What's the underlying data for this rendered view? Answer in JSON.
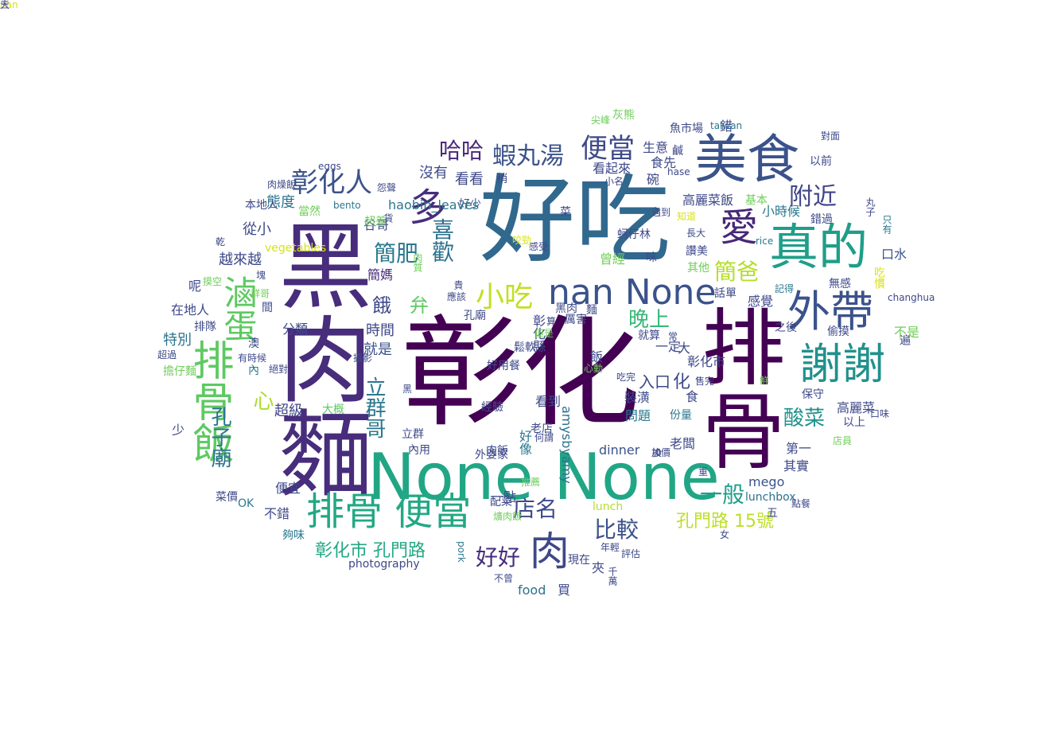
{
  "palette": {
    "dark_purple": "#440154",
    "indigo": "#3b528b",
    "teal": "#21918c",
    "green": "#27ad81",
    "lime": "#a0da39",
    "yellow": "#d8e219"
  },
  "words": [
    {
      "text": "彰化",
      "c": "#440154"
    },
    {
      "text": "好吃",
      "c": "#31688e"
    },
    {
      "text": "黑肉麵",
      "c": "#472d7b"
    },
    {
      "text": "排骨",
      "c": "#440154"
    },
    {
      "text": "None None",
      "c": "#21a685"
    },
    {
      "text": "美食",
      "c": "#3b528b"
    },
    {
      "text": "真的",
      "c": "#1f9e89"
    },
    {
      "text": "排骨飯",
      "c": "#5ec962"
    },
    {
      "text": "排骨 便當",
      "c": "#22a884"
    },
    {
      "text": "外帶",
      "c": "#3b528b"
    },
    {
      "text": "謝謝",
      "c": "#21918c"
    },
    {
      "text": "多",
      "c": "#472d7b"
    },
    {
      "text": "愛",
      "c": "#482878"
    },
    {
      "text": "肉",
      "c": "#3e4989"
    },
    {
      "text": "nan None",
      "c": "#3b528b"
    },
    {
      "text": "滷蛋",
      "c": "#5ec962"
    },
    {
      "text": "小吃",
      "c": "#c2df23"
    },
    {
      "text": "彰化人",
      "c": "#3b528b"
    },
    {
      "text": "便當",
      "c": "#3e4989"
    },
    {
      "text": "蝦丸湯",
      "c": "#3b528b"
    },
    {
      "text": "附近",
      "c": "#414487"
    },
    {
      "text": "哈哈",
      "c": "#482878"
    },
    {
      "text": "喜歡",
      "c": "#2c728e"
    },
    {
      "text": "簡肥",
      "c": "#2a788e"
    },
    {
      "text": "簡爸",
      "c": "#b5de2b"
    },
    {
      "text": "孔子廟",
      "c": "#2c728e"
    },
    {
      "text": "立群哥",
      "c": "#2a788e"
    },
    {
      "text": "心",
      "c": "#addc30"
    },
    {
      "text": "店名",
      "c": "#3e4989"
    },
    {
      "text": "比較",
      "c": "#3b528b"
    },
    {
      "text": "一般",
      "c": "#1f9e89"
    },
    {
      "text": "好好",
      "c": "#472d7b"
    },
    {
      "text": "晚上",
      "c": "#35b779"
    },
    {
      "text": "酸菜",
      "c": "#20928c"
    },
    {
      "text": "彰化市 孔門路",
      "c": "#22a884"
    },
    {
      "text": "孔門路 15號",
      "c": "#bddf26"
    },
    {
      "text": "入口",
      "c": "#3e4989"
    },
    {
      "text": "化",
      "c": "#3e4989"
    },
    {
      "text": "餓",
      "c": "#3e4989"
    },
    {
      "text": "弁",
      "c": "#5ec962"
    },
    {
      "text": "時間",
      "c": "#3e4989"
    },
    {
      "text": "就是",
      "c": "#3b528b"
    },
    {
      "text": "特別",
      "c": "#2c728e"
    },
    {
      "text": "超級",
      "c": "#414487"
    },
    {
      "text": "從小",
      "c": "#3e4989"
    },
    {
      "text": "越來越",
      "c": "#3e4989"
    },
    {
      "text": "態度",
      "c": "#2c728e"
    },
    {
      "text": "簡媽",
      "c": "#472d7b"
    },
    {
      "text": "谷哥",
      "c": "#3e4989"
    },
    {
      "text": "沒有",
      "c": "#3e4989"
    },
    {
      "text": "看看",
      "c": "#3e4989"
    },
    {
      "text": "生意",
      "c": "#3e4989"
    },
    {
      "text": "食先",
      "c": "#3e4989"
    },
    {
      "text": "看起來",
      "c": "#3e4989"
    },
    {
      "text": "碗",
      "c": "#3e4989"
    },
    {
      "text": "高麗菜飯",
      "c": "#3e4989"
    },
    {
      "text": "小時候",
      "c": "#2a788e"
    },
    {
      "text": "口水",
      "c": "#3b528b"
    },
    {
      "text": "感覺",
      "c": "#3e4989"
    },
    {
      "text": "不是",
      "c": "#6ece58"
    },
    {
      "text": "高麗菜",
      "c": "#3e4989"
    },
    {
      "text": "其實",
      "c": "#3e4989"
    },
    {
      "text": "第一",
      "c": "#3e4989"
    },
    {
      "text": "保守",
      "c": "#3e4989"
    },
    {
      "text": "以上",
      "c": "#3e4989"
    },
    {
      "text": "口味",
      "c": "#3e4989"
    },
    {
      "text": "mego",
      "c": "#3b528b"
    },
    {
      "text": "lunchbox",
      "c": "#2c728e"
    },
    {
      "text": "點餐",
      "c": "#3e4989"
    },
    {
      "text": "五",
      "c": "#3e4989"
    },
    {
      "text": "女",
      "c": "#3e4989"
    },
    {
      "text": "老闆",
      "c": "#3e4989"
    },
    {
      "text": "裝潢",
      "c": "#3e4989"
    },
    {
      "text": "問題",
      "c": "#2a788e"
    },
    {
      "text": "份量",
      "c": "#2a788e"
    },
    {
      "text": "看到",
      "c": "#3e4989"
    },
    {
      "text": "食",
      "c": "#3e4989"
    },
    {
      "text": "彰化市",
      "c": "#3e4989"
    },
    {
      "text": "大",
      "c": "#3e4989"
    },
    {
      "text": "一定",
      "c": "#3e4989"
    },
    {
      "text": "就算",
      "c": "#3e4989"
    },
    {
      "text": "常",
      "c": "#3e4989"
    },
    {
      "text": "吃完",
      "c": "#3e4989"
    },
    {
      "text": "售完",
      "c": "#3e4989"
    },
    {
      "text": "心動",
      "c": "#6ece58"
    },
    {
      "text": "amysbyamy",
      "c": "#2c728e"
    },
    {
      "text": "dinner",
      "c": "#3b528b"
    },
    {
      "text": "飯",
      "c": "#3e4989"
    },
    {
      "text": "老店",
      "c": "#3e4989"
    },
    {
      "text": "何謂",
      "c": "#3e4989"
    },
    {
      "text": "肉飯",
      "c": "#3e4989"
    },
    {
      "text": "好像",
      "c": "#2a788e"
    },
    {
      "text": "外婆家",
      "c": "#3e4989"
    },
    {
      "text": "推薦",
      "c": "#6ece58"
    },
    {
      "text": "配菜",
      "c": "#3e4989"
    },
    {
      "text": "爌肉飯",
      "c": "#6ece58"
    },
    {
      "text": "一點",
      "c": "#3e4989"
    },
    {
      "text": "便宜",
      "c": "#3e4989"
    },
    {
      "text": "不錯",
      "c": "#3e4989"
    },
    {
      "text": "菜價",
      "c": "#3e4989"
    },
    {
      "text": "OK",
      "c": "#2a788e"
    },
    {
      "text": "夠味",
      "c": "#2a788e"
    },
    {
      "text": "photography",
      "c": "#3e4989"
    },
    {
      "text": "pork",
      "c": "#2a788e"
    },
    {
      "text": "不曾",
      "c": "#3e4989"
    },
    {
      "text": "food",
      "c": "#2c728e"
    },
    {
      "text": "買",
      "c": "#3e4989"
    },
    {
      "text": "夾",
      "c": "#3e4989"
    },
    {
      "text": "lunch",
      "c": "#b5de2b"
    },
    {
      "text": "現在",
      "c": "#3e4989"
    },
    {
      "text": "評估",
      "c": "#3e4989"
    },
    {
      "text": "年輕",
      "c": "#3e4989"
    },
    {
      "text": "鬆軟",
      "c": "#3e4989"
    },
    {
      "text": "好用餐",
      "c": "#3e4989"
    },
    {
      "text": "經驗",
      "c": "#3e4989"
    },
    {
      "text": "大概",
      "c": "#5ec962"
    },
    {
      "text": "孔廟",
      "c": "#3e4989"
    },
    {
      "text": "彰化縣",
      "c": "#3e4989"
    },
    {
      "text": "厲害",
      "c": "#3e4989"
    },
    {
      "text": "麵",
      "c": "#3e4989"
    },
    {
      "text": "曾經",
      "c": "#6ece58"
    },
    {
      "text": "味",
      "c": "#3e4989"
    },
    {
      "text": "讚美",
      "c": "#3e4989"
    },
    {
      "text": "其他",
      "c": "#6ece58"
    },
    {
      "text": "話單",
      "c": "#3e4989"
    },
    {
      "text": "記得",
      "c": "#2a788e"
    },
    {
      "text": "之後",
      "c": "#3e4989"
    },
    {
      "text": "偷摸",
      "c": "#3e4989"
    },
    {
      "text": "遍",
      "c": "#3e4989"
    },
    {
      "text": "changhua",
      "c": "#3e4989"
    },
    {
      "text": "無感",
      "c": "#3e4989"
    },
    {
      "text": "rice",
      "c": "#2a788e"
    },
    {
      "text": "基本",
      "c": "#6ece58"
    },
    {
      "text": "錯過",
      "c": "#3e4989"
    },
    {
      "text": "吃慣",
      "c": "#d8e219"
    },
    {
      "text": "只有",
      "c": "#2a788e"
    },
    {
      "text": "丸子",
      "c": "#3e4989"
    },
    {
      "text": "以前",
      "c": "#3e4989"
    },
    {
      "text": "對面",
      "c": "#3e4989"
    },
    {
      "text": "錯",
      "c": "#3e4989"
    },
    {
      "text": "taiwan",
      "c": "#2a788e"
    },
    {
      "text": "魚市場",
      "c": "#3e4989"
    },
    {
      "text": "灰熊",
      "c": "#6ece58"
    },
    {
      "text": "尖峰",
      "c": "#6ece58"
    },
    {
      "text": "鹹",
      "c": "#3e4989"
    },
    {
      "text": "hase",
      "c": "#3e4989"
    },
    {
      "text": "小名",
      "c": "#3e4989"
    },
    {
      "text": "遇到",
      "c": "#3e4989"
    },
    {
      "text": "知道",
      "c": "#d8e219"
    },
    {
      "text": "長大",
      "c": "#3e4989"
    },
    {
      "text": "感受",
      "c": "#3e4989"
    },
    {
      "text": "蚵仔林",
      "c": "#3e4989"
    },
    {
      "text": "菜",
      "c": "#3e4989"
    },
    {
      "text": "咬勁",
      "c": "#d8e219"
    },
    {
      "text": "好少",
      "c": "#3e4989"
    },
    {
      "text": "稍",
      "c": "#3e4989"
    },
    {
      "text": "haobin_leaves",
      "c": "#2a788e"
    },
    {
      "text": "貨",
      "c": "#3e4989"
    },
    {
      "text": "當然",
      "c": "#6ece58"
    },
    {
      "text": "bento",
      "c": "#2a788e"
    },
    {
      "text": "怨聲",
      "c": "#3e4989"
    },
    {
      "text": "超差",
      "c": "#6ece58"
    },
    {
      "text": "肉燥飯",
      "c": "#3e4989"
    },
    {
      "text": "eggs",
      "c": "#3e4989"
    },
    {
      "text": "本地人",
      "c": "#3e4989"
    },
    {
      "text": "乾",
      "c": "#3e4989"
    },
    {
      "text": "vegetables",
      "c": "#d8e219"
    },
    {
      "text": "塊",
      "c": "#3e4989"
    },
    {
      "text": "摸空",
      "c": "#6ece58"
    },
    {
      "text": "呢",
      "c": "#3e4989"
    },
    {
      "text": "群哥",
      "c": "#6ece58"
    },
    {
      "text": "在地人",
      "c": "#3e4989"
    },
    {
      "text": "間",
      "c": "#3e4989"
    },
    {
      "text": "排隊",
      "c": "#3e4989"
    },
    {
      "text": "分類",
      "c": "#3e4989"
    },
    {
      "text": "澳",
      "c": "#3e4989"
    },
    {
      "text": "超過",
      "c": "#3e4989"
    },
    {
      "text": "有時候",
      "c": "#3e4989"
    },
    {
      "text": "擔仔麵",
      "c": "#6ece58"
    },
    {
      "text": "內",
      "c": "#2a788e"
    },
    {
      "text": "絕對",
      "c": "#3e4989"
    },
    {
      "text": "攝影",
      "c": "#3e4989"
    },
    {
      "text": "黑",
      "c": "#3e4989"
    },
    {
      "text": "少",
      "c": "#3e4989"
    },
    {
      "text": "立群",
      "c": "#3e4989"
    },
    {
      "text": "內用",
      "c": "#3e4989"
    },
    {
      "text": "肉質",
      "c": "#6ece58"
    },
    {
      "text": "應該",
      "c": "#3e4989"
    },
    {
      "text": "貴",
      "c": "#3e4989"
    },
    {
      "text": "黑肉",
      "c": "#3e4989"
    },
    {
      "text": "算",
      "c": "#3e4989"
    },
    {
      "text": "但是",
      "c": "#6ece58"
    },
    {
      "text": "重",
      "c": "#3e4989"
    },
    {
      "text": "千萬",
      "c": "#3e4989"
    },
    {
      "text": "店員",
      "c": "#6ece58"
    },
    {
      "text": "加價",
      "c": "#3e4989"
    },
    {
      "text": "換",
      "c": "#3e4989"
    },
    {
      "text": "鮮",
      "c": "#6ece58"
    },
    {
      "text": "三",
      "c": "#3e4989"
    },
    {
      "text": "nan",
      "c": "#d8e219"
    },
    {
      "text": "大",
      "c": "#3e4989"
    }
  ]
}
